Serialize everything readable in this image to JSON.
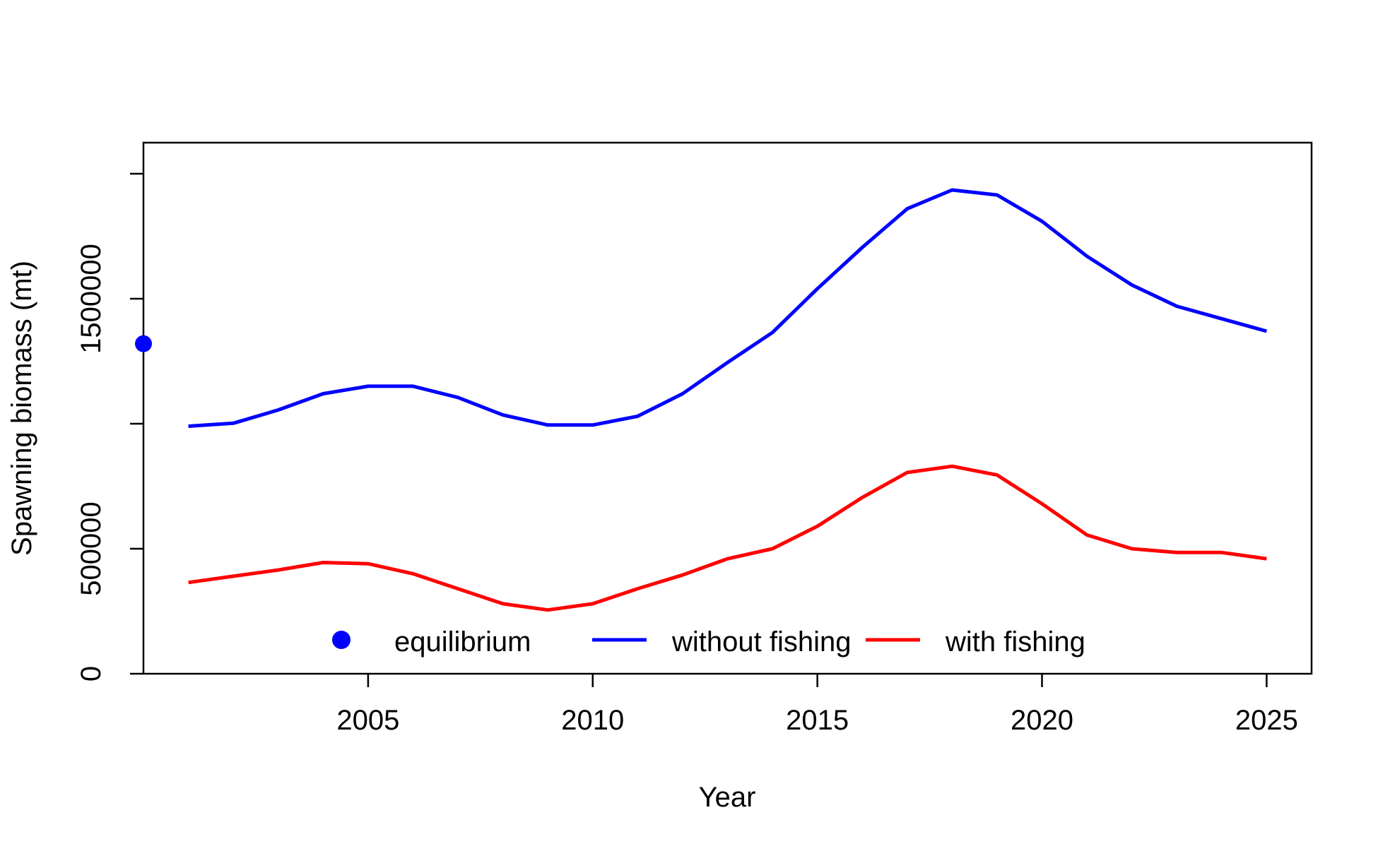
{
  "chart_data": {
    "type": "line",
    "title": "",
    "xlabel": "Year",
    "ylabel": "Spawning biomass (mt)",
    "xlim": [
      2000,
      2026
    ],
    "ylim": [
      0,
      2000000
    ],
    "x_ticks": [
      2005,
      2010,
      2015,
      2020,
      2025
    ],
    "x_tick_labels": [
      "2005",
      "2010",
      "2015",
      "2020",
      "2025"
    ],
    "y_ticks": [
      0,
      500000,
      1000000,
      1500000,
      2000000
    ],
    "y_tick_labels": [
      "0",
      "500000",
      "",
      "1500000",
      ""
    ],
    "grid": false,
    "legend_position": "bottom",
    "x": [
      2001,
      2002,
      2003,
      2004,
      2005,
      2006,
      2007,
      2008,
      2009,
      2010,
      2011,
      2012,
      2013,
      2014,
      2015,
      2016,
      2017,
      2018,
      2019,
      2020,
      2021,
      2022,
      2023,
      2024,
      2025
    ],
    "series": [
      {
        "name": "without fishing",
        "color": "#0000ff",
        "values": [
          990000,
          1002000,
          1055000,
          1120000,
          1150000,
          1150000,
          1105000,
          1035000,
          995000,
          995000,
          1030000,
          1120000,
          1245000,
          1365000,
          1540000,
          1705000,
          1860000,
          1935000,
          1915000,
          1810000,
          1670000,
          1555000,
          1470000,
          1420000,
          1370000
        ]
      },
      {
        "name": "with fishing",
        "color": "#ff0000",
        "values": [
          365000,
          390000,
          415000,
          445000,
          440000,
          400000,
          340000,
          280000,
          255000,
          280000,
          340000,
          395000,
          460000,
          500000,
          590000,
          705000,
          805000,
          830000,
          795000,
          680000,
          555000,
          500000,
          485000,
          485000,
          460000
        ]
      }
    ],
    "points": [
      {
        "name": "equilibrium",
        "color": "#0000ff",
        "x": 2000,
        "y": 1320000
      }
    ],
    "legend": [
      {
        "label": "equilibrium",
        "symbol": "point",
        "color": "#0000ff"
      },
      {
        "label": "without fishing",
        "symbol": "line",
        "color": "#0000ff"
      },
      {
        "label": "with fishing",
        "symbol": "line",
        "color": "#ff0000"
      }
    ]
  }
}
